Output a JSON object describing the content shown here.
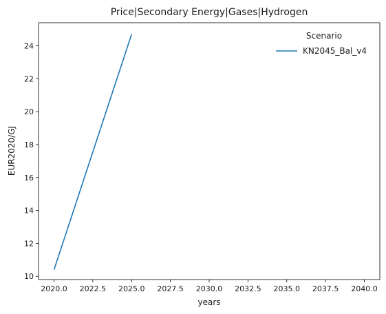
{
  "chart_data": {
    "type": "line",
    "title": "Price|Secondary Energy|Gases|Hydrogen",
    "xlabel": "years",
    "ylabel": "EUR2020/GJ",
    "xlim": [
      2019.0,
      2041.0
    ],
    "ylim": [
      9.8,
      25.4
    ],
    "x_ticks": [
      "2020.0",
      "2022.5",
      "2025.0",
      "2027.5",
      "2030.0",
      "2032.5",
      "2035.0",
      "2037.5",
      "2040.0"
    ],
    "y_ticks": [
      "10",
      "12",
      "14",
      "16",
      "18",
      "20",
      "22",
      "24"
    ],
    "grid": false,
    "legend": {
      "title": "Scenario",
      "placement": "top-right"
    },
    "series": [
      {
        "name": "KN2045_Bal_v4",
        "color": "#1f77b4",
        "x": [
          2020,
          2025
        ],
        "y": [
          10.4,
          24.7
        ]
      }
    ]
  }
}
